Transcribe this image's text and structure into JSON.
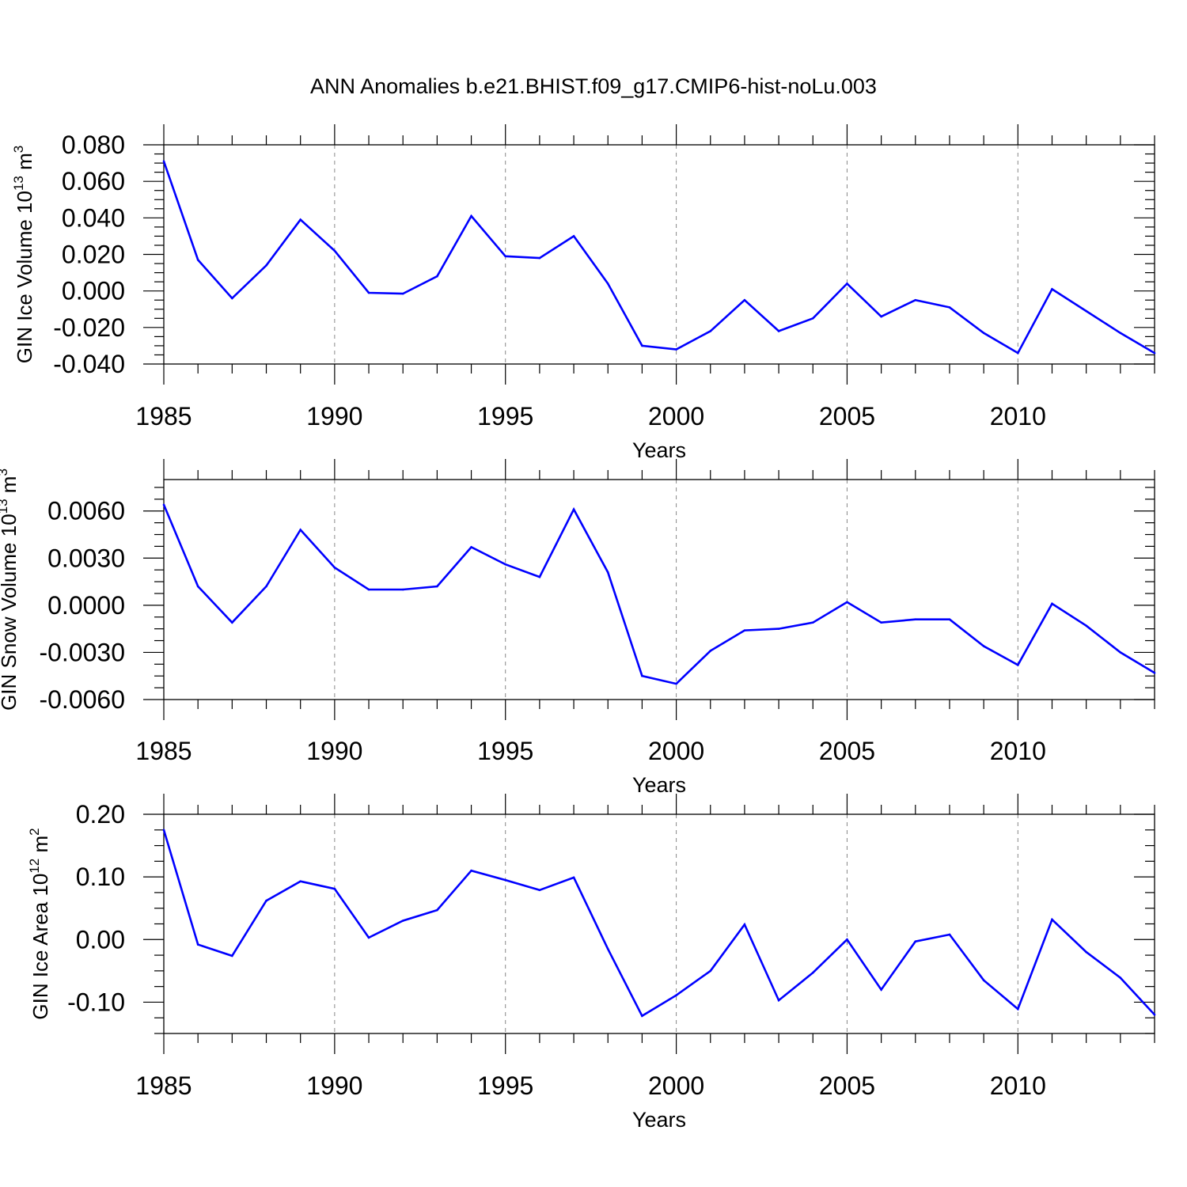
{
  "figure": {
    "title": "ANN Anomalies b.e21.BHIST.f09_g17.CMIP6-hist-noLu.003",
    "line_color": "#0000ff",
    "grid_color": "#888888"
  },
  "chart_data": [
    {
      "type": "line",
      "ylabel": "GIN Ice Volume 10",
      "ylabel_exp": "13",
      "ylabel_unit": " m",
      "ylabel_unit_exp": "3",
      "xlabel": "Years",
      "xlim": [
        1985,
        2014
      ],
      "ylim": [
        -0.04,
        0.08
      ],
      "xticks": [
        1985,
        1990,
        1995,
        2000,
        2005,
        2010
      ],
      "xtick_labels": [
        "1985",
        "1990",
        "1995",
        "2000",
        "2005",
        "2010"
      ],
      "yticks": [
        0.08,
        0.06,
        0.04,
        0.02,
        0.0,
        -0.02,
        -0.04
      ],
      "ytick_labels": [
        "0.080",
        "0.060",
        "0.040",
        "0.020",
        "0.000",
        "-0.020",
        "-0.040"
      ],
      "x": [
        1985,
        1986,
        1987,
        1988,
        1989,
        1990,
        1991,
        1992,
        1993,
        1994,
        1995,
        1996,
        1997,
        1998,
        1999,
        2000,
        2001,
        2002,
        2003,
        2004,
        2005,
        2006,
        2007,
        2008,
        2009,
        2010,
        2011,
        2012,
        2013,
        2014
      ],
      "y": [
        0.071,
        0.017,
        -0.004,
        0.014,
        0.039,
        0.022,
        -0.001,
        -0.0015,
        0.008,
        0.041,
        0.019,
        0.018,
        0.03,
        0.004,
        -0.03,
        -0.032,
        -0.022,
        -0.005,
        -0.022,
        -0.015,
        0.004,
        -0.014,
        -0.005,
        -0.009,
        -0.023,
        -0.034,
        0.001,
        -0.011,
        -0.023,
        -0.034
      ]
    },
    {
      "type": "line",
      "ylabel": "GIN Snow Volume 10",
      "ylabel_exp": "13",
      "ylabel_unit": " m",
      "ylabel_unit_exp": "3",
      "xlabel": "Years",
      "xlim": [
        1985,
        2014
      ],
      "ylim": [
        -0.006,
        0.008
      ],
      "xticks": [
        1985,
        1990,
        1995,
        2000,
        2005,
        2010
      ],
      "xtick_labels": [
        "1985",
        "1990",
        "1995",
        "2000",
        "2005",
        "2010"
      ],
      "yticks": [
        0.006,
        0.003,
        0.0,
        -0.003,
        -0.006
      ],
      "ytick_labels": [
        "0.0060",
        "0.0030",
        "0.0000",
        "-0.0030",
        "-0.0060"
      ],
      "x": [
        1985,
        1986,
        1987,
        1988,
        1989,
        1990,
        1991,
        1992,
        1993,
        1994,
        1995,
        1996,
        1997,
        1998,
        1999,
        2000,
        2001,
        2002,
        2003,
        2004,
        2005,
        2006,
        2007,
        2008,
        2009,
        2010,
        2011,
        2012,
        2013,
        2014
      ],
      "y": [
        0.0064,
        0.0012,
        -0.0011,
        0.0012,
        0.0048,
        0.0024,
        0.001,
        0.001,
        0.0012,
        0.0037,
        0.0026,
        0.0018,
        0.0061,
        0.0021,
        -0.0045,
        -0.005,
        -0.0029,
        -0.0016,
        -0.0015,
        -0.0011,
        0.0002,
        -0.0011,
        -0.0009,
        -0.0009,
        -0.0026,
        -0.0038,
        0.0001,
        -0.0013,
        -0.003,
        -0.0043
      ]
    },
    {
      "type": "line",
      "ylabel": "GIN Ice Area 10",
      "ylabel_exp": "12",
      "ylabel_unit": " m",
      "ylabel_unit_exp": "2",
      "xlabel": "Years",
      "xlim": [
        1985,
        2014
      ],
      "ylim": [
        -0.15,
        0.2
      ],
      "xticks": [
        1985,
        1990,
        1995,
        2000,
        2005,
        2010
      ],
      "xtick_labels": [
        "1985",
        "1990",
        "1995",
        "2000",
        "2005",
        "2010"
      ],
      "yticks": [
        0.2,
        0.1,
        0.0,
        -0.1
      ],
      "ytick_labels": [
        "0.20",
        "0.10",
        "0.00",
        "-0.10"
      ],
      "x": [
        1985,
        1986,
        1987,
        1988,
        1989,
        1990,
        1991,
        1992,
        1993,
        1994,
        1995,
        1996,
        1997,
        1998,
        1999,
        2000,
        2001,
        2002,
        2003,
        2004,
        2005,
        2006,
        2007,
        2008,
        2009,
        2010,
        2011,
        2012,
        2013,
        2014
      ],
      "y": [
        0.175,
        -0.008,
        -0.026,
        0.062,
        0.093,
        0.081,
        0.003,
        0.03,
        0.047,
        0.11,
        0.095,
        0.079,
        0.099,
        -0.015,
        -0.122,
        -0.089,
        -0.05,
        0.024,
        -0.097,
        -0.053,
        0.0,
        -0.08,
        -0.003,
        0.008,
        -0.065,
        -0.111,
        0.032,
        -0.02,
        -0.061,
        -0.12
      ]
    }
  ]
}
